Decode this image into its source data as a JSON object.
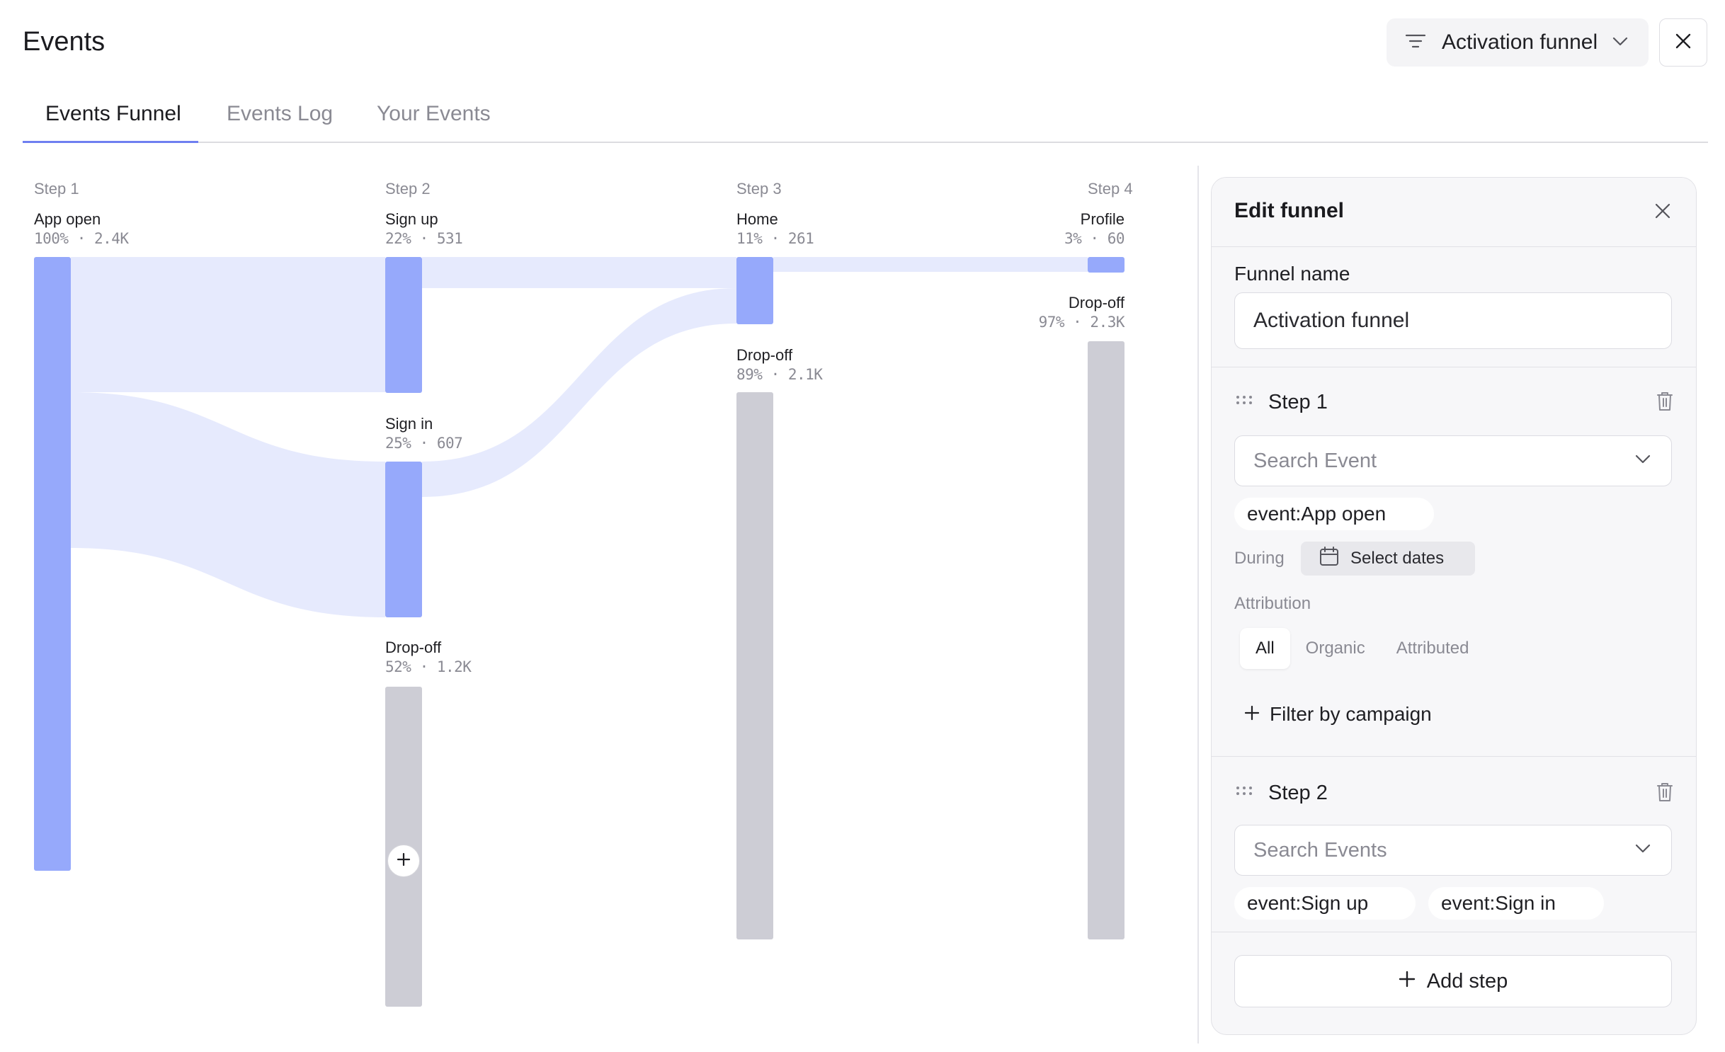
{
  "page": {
    "title": "Events"
  },
  "header": {
    "funnel_select_label": "Activation funnel",
    "filter_icon": "filter-icon",
    "close_icon": "close-icon"
  },
  "tabs": [
    {
      "label": "Events Funnel",
      "active": true
    },
    {
      "label": "Events Log",
      "active": false
    },
    {
      "label": "Your Events",
      "active": false
    }
  ],
  "funnel": {
    "steps": [
      {
        "label": "Step 1",
        "nodes": [
          {
            "name": "App open",
            "meta": "100% · 2.4K",
            "kind": "event"
          }
        ]
      },
      {
        "label": "Step 2",
        "nodes": [
          {
            "name": "Sign up",
            "meta": "22% · 531",
            "kind": "event"
          },
          {
            "name": "Sign in",
            "meta": "25% · 607",
            "kind": "event"
          },
          {
            "name": "Drop-off",
            "meta": "52% · 1.2K",
            "kind": "drop"
          }
        ]
      },
      {
        "label": "Step 3",
        "nodes": [
          {
            "name": "Home",
            "meta": "11% · 261",
            "kind": "event"
          },
          {
            "name": "Drop-off",
            "meta": "89% · 2.1K",
            "kind": "drop"
          }
        ]
      },
      {
        "label": "Step 4",
        "nodes": [
          {
            "name": "Profile",
            "meta": "3% · 60",
            "kind": "event"
          },
          {
            "name": "Drop-off",
            "meta": "97% · 2.3K",
            "kind": "drop"
          }
        ]
      }
    ],
    "colors": {
      "event": "#96a9fb",
      "drop": "#cdcdd5",
      "flow": "#e6eafd"
    }
  },
  "panel": {
    "title": "Edit funnel",
    "funnel_name_label": "Funnel name",
    "funnel_name_value": "Activation funnel",
    "step1": {
      "title": "Step 1",
      "search_placeholder": "Search Event",
      "chips": [
        "event:App open"
      ],
      "during_label": "During",
      "dates_button": "Select dates",
      "attribution_label": "Attribution",
      "attribution_options": [
        "All",
        "Organic",
        "Attributed"
      ],
      "attribution_selected": "All",
      "filter_link": "Filter by campaign"
    },
    "step2": {
      "title": "Step 2",
      "search_placeholder": "Search Events",
      "chips": [
        "event:Sign up",
        "event:Sign in"
      ]
    },
    "add_step_label": "Add step"
  }
}
